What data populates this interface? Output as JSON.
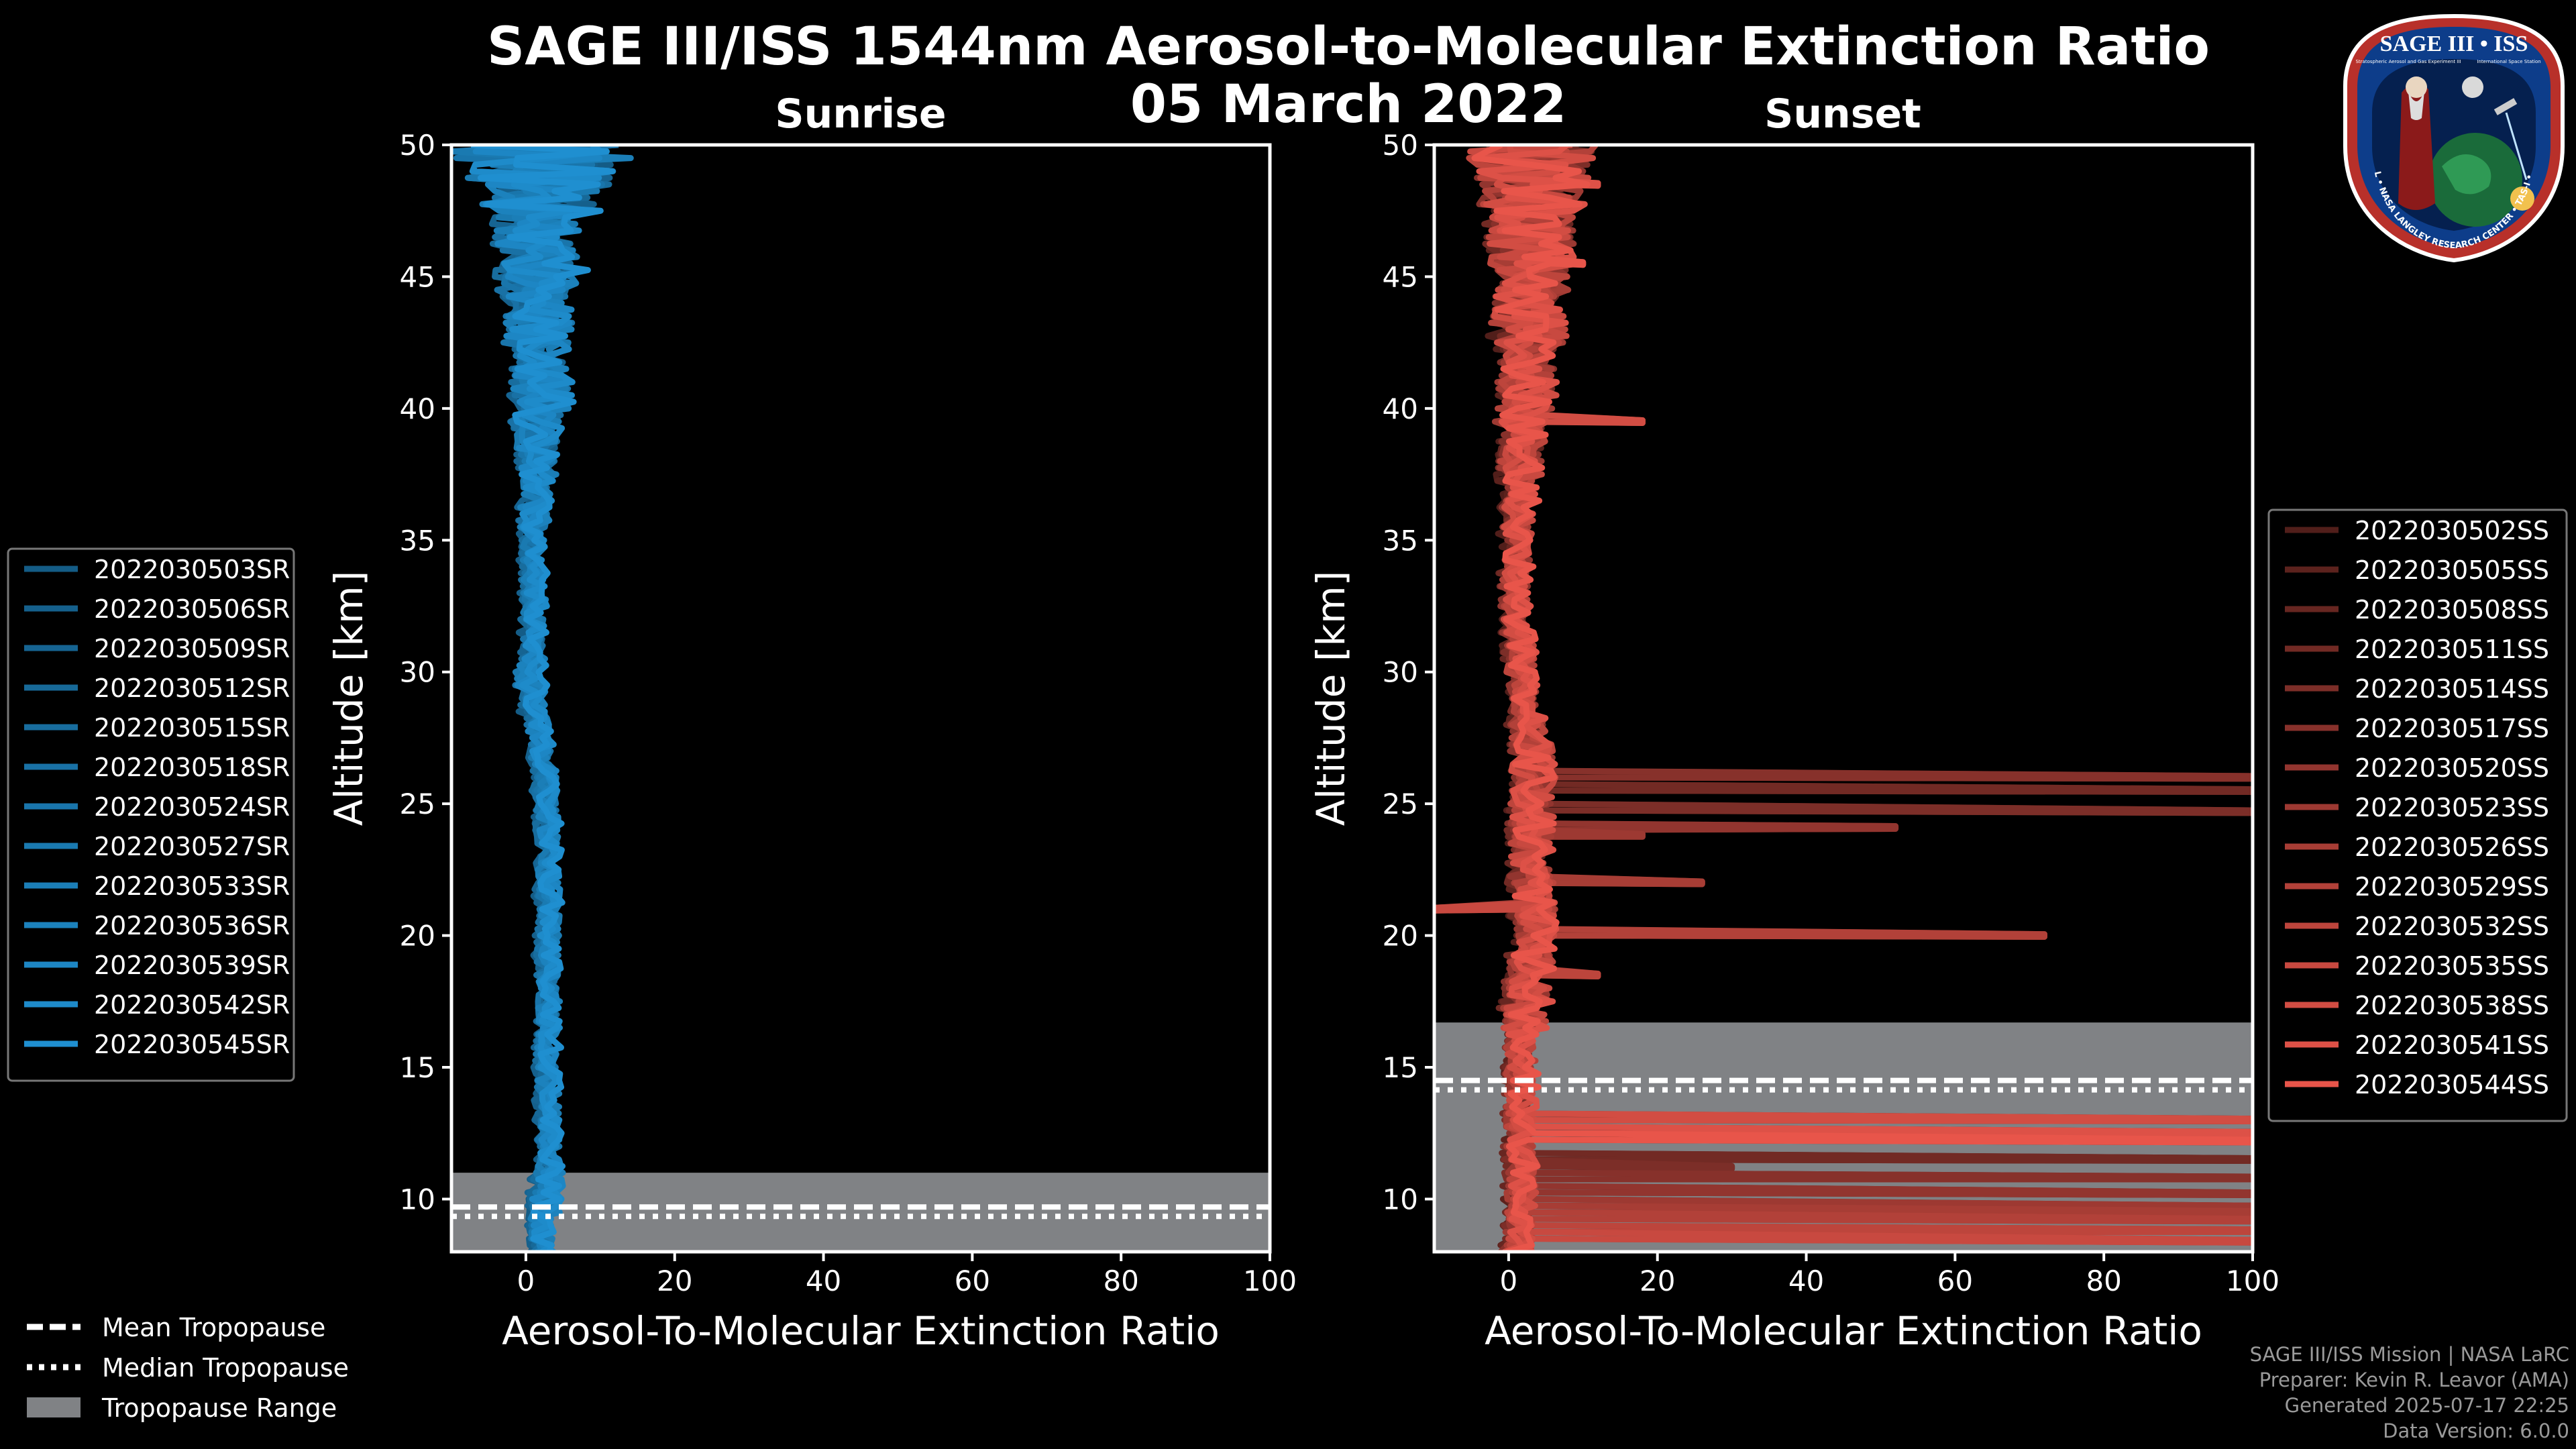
{
  "title_line1": "SAGE III/ISS 1544nm Aerosol-to-Molecular Extinction Ratio",
  "title_line2": "05 March 2022",
  "logo": {
    "top_text": "SAGE III • ISS",
    "small_left": "Stratospheric Aerosol and Gas Experiment III",
    "small_right": "International Space Station",
    "ring_text": "BALL • NASA LANGLEY RESEARCH CENTER • TAS-I • ESA"
  },
  "footer": {
    "line1": "SAGE III/ISS Mission | NASA LaRC",
    "line2": "Preparer: Kevin R. Leavor (AMA)",
    "line3": "Generated 2025-07-17 22:25",
    "line4": "Data Version: 6.0.0"
  },
  "colors": {
    "sunrise_base": "#1f8fd0",
    "sunset_base": "#e8554a",
    "tropopause_fill": "#808285",
    "axis": "#ffffff",
    "background": "#000000"
  },
  "bottom_legend": [
    {
      "label": "Mean Tropopause",
      "style": "dashed"
    },
    {
      "label": "Median Tropopause",
      "style": "dotted"
    },
    {
      "label": "Tropopause Range",
      "style": "patch"
    }
  ],
  "chart_data": [
    {
      "type": "line",
      "title": "Sunrise",
      "xlabel": "Aerosol-To-Molecular Extinction Ratio",
      "ylabel": "Altitude [km]",
      "xlim": [
        -10,
        100
      ],
      "ylim": [
        8,
        50
      ],
      "xticks": [
        0,
        20,
        40,
        60,
        80,
        100
      ],
      "yticks": [
        10,
        15,
        20,
        25,
        30,
        35,
        40,
        45,
        50
      ],
      "tropopause": {
        "mean": 9.7,
        "median": 9.7,
        "range": [
          8.0,
          11.0
        ]
      },
      "series_names": [
        "2022030503SR",
        "2022030506SR",
        "2022030509SR",
        "2022030512SR",
        "2022030515SR",
        "2022030518SR",
        "2022030524SR",
        "2022030527SR",
        "2022030533SR",
        "2022030536SR",
        "2022030539SR",
        "2022030542SR",
        "2022030545SR"
      ],
      "profile": {
        "altitudes": [
          8,
          9,
          10,
          11,
          12,
          13,
          14,
          15,
          16,
          17,
          18,
          19,
          20,
          21,
          22,
          23,
          24,
          25,
          26,
          27,
          28,
          29,
          30,
          31,
          32,
          33,
          34,
          35,
          36,
          37,
          38,
          39,
          40,
          41,
          42,
          43,
          44,
          45,
          46,
          47,
          48,
          49,
          50
        ],
        "median": [
          2,
          2,
          2.5,
          3,
          3,
          3,
          3,
          2.8,
          2.8,
          3,
          3,
          3,
          3,
          3,
          3,
          3,
          3,
          2.8,
          2.5,
          2,
          1.5,
          1,
          0.5,
          1,
          1,
          1,
          1,
          1,
          1,
          1.5,
          1.5,
          1.5,
          2,
          2,
          2,
          2,
          2,
          2,
          1.5,
          1.5,
          2,
          2,
          2
        ],
        "spread": [
          1.5,
          1.5,
          2,
          2,
          1.5,
          1.5,
          1.5,
          1.5,
          1.5,
          1.5,
          1.5,
          1.5,
          1.5,
          1.5,
          1.5,
          1.5,
          1.5,
          1.5,
          1.5,
          1.5,
          1.5,
          1.5,
          2,
          1.5,
          1.5,
          1.5,
          1.5,
          1.5,
          2,
          2,
          2.5,
          3,
          4,
          4,
          4,
          5,
          5,
          6,
          6,
          6,
          8,
          10,
          12
        ]
      }
    },
    {
      "type": "line",
      "title": "Sunset",
      "xlabel": "Aerosol-To-Molecular Extinction Ratio",
      "ylabel": "Altitude [km]",
      "xlim": [
        -10,
        100
      ],
      "ylim": [
        8,
        50
      ],
      "xticks": [
        0,
        20,
        40,
        60,
        80,
        100
      ],
      "yticks": [
        10,
        15,
        20,
        25,
        30,
        35,
        40,
        45,
        50
      ],
      "tropopause": {
        "mean": 14.5,
        "median": 14.5,
        "range": [
          8.0,
          16.7
        ]
      },
      "series_names": [
        "2022030502SS",
        "2022030505SS",
        "2022030508SS",
        "2022030511SS",
        "2022030514SS",
        "2022030517SS",
        "2022030520SS",
        "2022030523SS",
        "2022030526SS",
        "2022030529SS",
        "2022030532SS",
        "2022030535SS",
        "2022030538SS",
        "2022030541SS",
        "2022030544SS"
      ],
      "profile": {
        "altitudes": [
          8,
          9,
          10,
          11,
          12,
          13,
          14,
          15,
          16,
          17,
          18,
          19,
          20,
          21,
          22,
          23,
          24,
          25,
          26,
          27,
          28,
          29,
          30,
          31,
          32,
          33,
          34,
          35,
          36,
          37,
          38,
          39,
          40,
          41,
          42,
          43,
          44,
          45,
          46,
          47,
          48,
          49,
          50
        ],
        "median": [
          1,
          1.5,
          1.5,
          1.5,
          1.5,
          1.5,
          1.5,
          1.5,
          1.5,
          2,
          2.5,
          3,
          4,
          3.5,
          3,
          3,
          3,
          3,
          3,
          3,
          2.5,
          2,
          1.5,
          1.5,
          1,
          1,
          1,
          1,
          1,
          1.5,
          1.5,
          2,
          2,
          2.5,
          2.5,
          2.5,
          2.5,
          3,
          3,
          3,
          3,
          3,
          3
        ],
        "spread": [
          2,
          2,
          2,
          2,
          2,
          2,
          2,
          2,
          2,
          3,
          3,
          3,
          3,
          3,
          3,
          3,
          3,
          3,
          3,
          3,
          2.5,
          2,
          2,
          2,
          2,
          2,
          2,
          2,
          2,
          2.5,
          3,
          3,
          4,
          4,
          4,
          5,
          5,
          5,
          6,
          6,
          7,
          8,
          9
        ]
      },
      "spikes": [
        {
          "alt": 25.5,
          "value": 100
        },
        {
          "alt": 24.7,
          "value": 100
        },
        {
          "alt": 26.0,
          "value": 100
        },
        {
          "alt": 24.1,
          "value": 52
        },
        {
          "alt": 23.8,
          "value": 18
        },
        {
          "alt": 22.0,
          "value": 26
        },
        {
          "alt": 20.0,
          "value": 72
        },
        {
          "alt": 18.5,
          "value": 12
        },
        {
          "alt": 21.0,
          "value": -10
        },
        {
          "alt": 39.5,
          "value": 18
        },
        {
          "alt": 48.5,
          "value": 12
        },
        {
          "alt": 45.5,
          "value": 10
        },
        {
          "alt": 13.0,
          "value": 100
        },
        {
          "alt": 12.5,
          "value": 100
        },
        {
          "alt": 12.2,
          "value": 100
        },
        {
          "alt": 11.5,
          "value": 100
        },
        {
          "alt": 11.2,
          "value": 30
        },
        {
          "alt": 10.8,
          "value": 100
        },
        {
          "alt": 10.2,
          "value": 100
        },
        {
          "alt": 9.7,
          "value": 100
        },
        {
          "alt": 9.5,
          "value": 100
        },
        {
          "alt": 9.2,
          "value": 100
        },
        {
          "alt": 8.8,
          "value": 100
        },
        {
          "alt": 8.4,
          "value": 100
        }
      ]
    }
  ]
}
